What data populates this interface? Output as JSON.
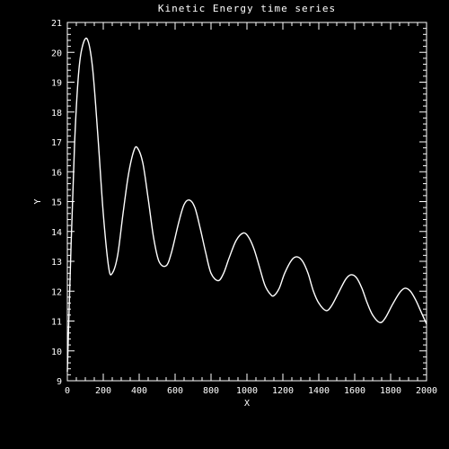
{
  "chart_data": {
    "type": "line",
    "title": "Kinetic Energy time series",
    "xlabel": "X",
    "ylabel": "Y",
    "xlim": [
      0,
      2000
    ],
    "ylim": [
      9,
      21
    ],
    "xticks": [
      "0",
      "200",
      "400",
      "600",
      "800",
      "1000",
      "1200",
      "1400",
      "1600",
      "1800",
      "2000"
    ],
    "yticks": [
      "9",
      "10",
      "11",
      "12",
      "13",
      "14",
      "15",
      "16",
      "17",
      "18",
      "19",
      "20",
      "21"
    ],
    "grid": false,
    "colors": {
      "background": "#000000",
      "foreground": "#ffffff"
    },
    "series": [
      {
        "values": [
          [
            0,
            9.3
          ],
          [
            20,
            13.4
          ],
          [
            40,
            16.9
          ],
          [
            60,
            19.1
          ],
          [
            80,
            20.1
          ],
          [
            110,
            20.45
          ],
          [
            140,
            19.5
          ],
          [
            170,
            17.2
          ],
          [
            200,
            14.6
          ],
          [
            230,
            12.8
          ],
          [
            250,
            12.6
          ],
          [
            280,
            13.2
          ],
          [
            310,
            14.6
          ],
          [
            340,
            15.9
          ],
          [
            370,
            16.7
          ],
          [
            390,
            16.8
          ],
          [
            420,
            16.3
          ],
          [
            450,
            15.1
          ],
          [
            480,
            13.8
          ],
          [
            510,
            13.0
          ],
          [
            550,
            12.85
          ],
          [
            580,
            13.3
          ],
          [
            620,
            14.3
          ],
          [
            650,
            14.9
          ],
          [
            680,
            15.05
          ],
          [
            710,
            14.8
          ],
          [
            740,
            14.1
          ],
          [
            770,
            13.3
          ],
          [
            800,
            12.6
          ],
          [
            840,
            12.35
          ],
          [
            870,
            12.6
          ],
          [
            900,
            13.1
          ],
          [
            940,
            13.7
          ],
          [
            980,
            13.95
          ],
          [
            1010,
            13.8
          ],
          [
            1040,
            13.4
          ],
          [
            1070,
            12.8
          ],
          [
            1100,
            12.2
          ],
          [
            1130,
            11.9
          ],
          [
            1150,
            11.85
          ],
          [
            1180,
            12.1
          ],
          [
            1210,
            12.6
          ],
          [
            1250,
            13.05
          ],
          [
            1280,
            13.15
          ],
          [
            1310,
            13.0
          ],
          [
            1340,
            12.6
          ],
          [
            1370,
            12.0
          ],
          [
            1400,
            11.6
          ],
          [
            1440,
            11.35
          ],
          [
            1470,
            11.5
          ],
          [
            1510,
            11.95
          ],
          [
            1550,
            12.4
          ],
          [
            1580,
            12.55
          ],
          [
            1610,
            12.45
          ],
          [
            1640,
            12.1
          ],
          [
            1670,
            11.6
          ],
          [
            1700,
            11.2
          ],
          [
            1740,
            10.95
          ],
          [
            1770,
            11.1
          ],
          [
            1810,
            11.55
          ],
          [
            1850,
            11.95
          ],
          [
            1880,
            12.1
          ],
          [
            1910,
            12.0
          ],
          [
            1940,
            11.7
          ],
          [
            1970,
            11.3
          ],
          [
            2000,
            10.9
          ]
        ]
      }
    ]
  }
}
